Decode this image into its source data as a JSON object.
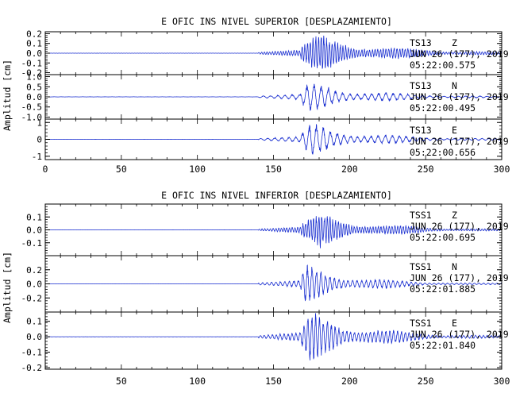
{
  "colors": {
    "trace": "#1a2fd0",
    "axis": "#000000",
    "background": "#ffffff"
  },
  "chart_data": [
    {
      "type": "line",
      "title": "E OFIC INS NIVEL SUPERIOR [DESPLAZAMIENTO]",
      "ylabel": "Amplitud [cm]",
      "xlim": [
        0,
        300
      ],
      "xticks": [
        "0",
        "50",
        "100",
        "150",
        "200",
        "250",
        "300"
      ],
      "series": [
        {
          "name": "TS13 Z",
          "station": "TS13",
          "component": "Z",
          "date": "JUN 26 (177), 2019",
          "time": "05:22:00.575",
          "ylim": [
            -0.22,
            0.22
          ],
          "yticks": [
            "0.2",
            "0.1",
            "0.0",
            "-0.1",
            "-0.2"
          ],
          "yvals": [
            0.2,
            0.1,
            0.0,
            -0.1,
            -0.2
          ],
          "envelope": {
            "onset": 140,
            "p_arrival": 168,
            "peak_time": 180,
            "peak_amp": 0.2,
            "coda_decay": 45,
            "period": 1.8
          }
        },
        {
          "name": "TS13 N",
          "station": "TS13",
          "component": "N",
          "date": "JUN 26 (177), 2019",
          "time": "05:22:00.495",
          "ylim": [
            -1.1,
            1.1
          ],
          "yticks": [
            "1.0",
            "0.5",
            "0.0",
            "-0.5",
            "-1.0"
          ],
          "yvals": [
            1.0,
            0.5,
            0.0,
            -0.5,
            -1.0
          ],
          "envelope": {
            "onset": 140,
            "p_arrival": 168,
            "peak_time": 174,
            "peak_amp": 0.8,
            "coda_decay": 40,
            "period": 4.8
          }
        },
        {
          "name": "TS13 E",
          "station": "TS13",
          "component": "E",
          "date": "JUN 26 (177), 2019",
          "time": "05:22:00.656",
          "ylim": [
            -1.2,
            1.2
          ],
          "yticks": [
            "1",
            "0",
            "-1"
          ],
          "yvals": [
            1,
            0,
            -1
          ],
          "envelope": {
            "onset": 140,
            "p_arrival": 168,
            "peak_time": 175,
            "peak_amp": 1.0,
            "coda_decay": 40,
            "period": 4.6
          }
        }
      ]
    },
    {
      "type": "line",
      "title": "E OFIC INS NIVEL INFERIOR [DESPLAZAMIENTO]",
      "ylabel": "Amplitud [cm]",
      "xlim": [
        0,
        300
      ],
      "xticks": [
        "50",
        "100",
        "150",
        "200",
        "250",
        "300"
      ],
      "series": [
        {
          "name": "TSS1 Z",
          "station": "TSS1",
          "component": "Z",
          "date": "JUN 26 (177), 2019",
          "time": "05:22:00.695",
          "ylim": [
            -0.2,
            0.2
          ],
          "yticks": [
            "0.1",
            "0.0",
            "-0.1"
          ],
          "yvals": [
            0.1,
            0.0,
            -0.1
          ],
          "envelope": {
            "onset": 140,
            "p_arrival": 168,
            "peak_time": 180,
            "peak_amp": 0.14,
            "coda_decay": 40,
            "period": 1.8
          }
        },
        {
          "name": "TSS1 N",
          "station": "TSS1",
          "component": "N",
          "date": "JUN 26 (177), 2019",
          "time": "05:22:01.885",
          "ylim": [
            -0.4,
            0.4
          ],
          "yticks": [
            "0.2",
            "0.0",
            "-0.2"
          ],
          "yvals": [
            0.2,
            0.0,
            -0.2
          ],
          "envelope": {
            "onset": 140,
            "p_arrival": 168,
            "peak_time": 171,
            "peak_amp": 0.3,
            "coda_decay": 35,
            "period": 3.0
          }
        },
        {
          "name": "TSS1 E",
          "station": "TSS1",
          "component": "E",
          "date": "JUN 26 (177), 2019",
          "time": "05:22:01.840",
          "ylim": [
            -0.21,
            0.16
          ],
          "yticks": [
            "0.1",
            "0.0",
            "-0.1",
            "-0.2"
          ],
          "yvals": [
            0.1,
            0.0,
            -0.1,
            -0.2
          ],
          "envelope": {
            "onset": 140,
            "p_arrival": 168,
            "peak_time": 175,
            "peak_amp": 0.17,
            "coda_decay": 40,
            "period": 2.6
          }
        }
      ]
    }
  ]
}
